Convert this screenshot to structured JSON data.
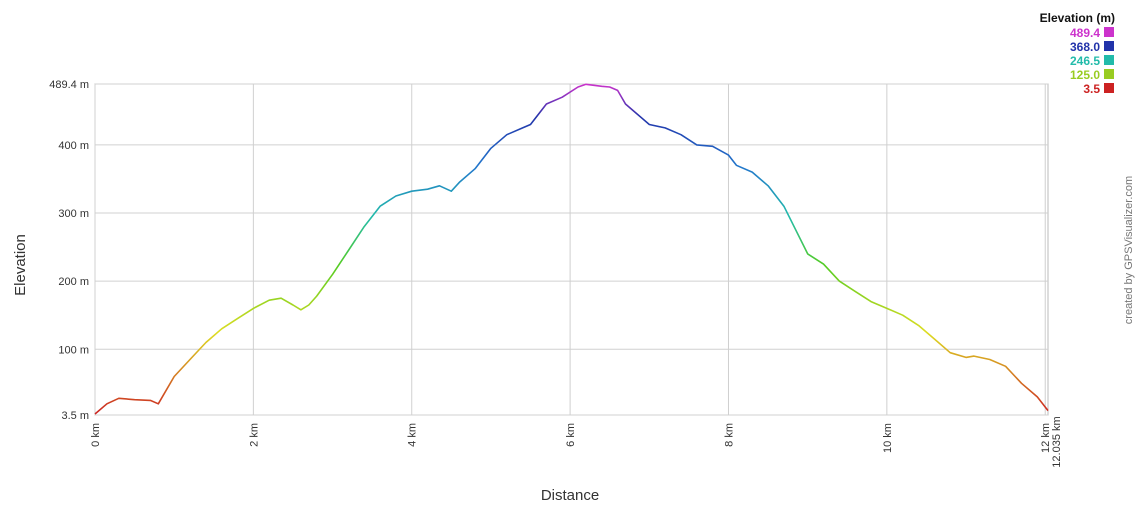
{
  "chart_data": {
    "type": "line",
    "xlabel": "Distance",
    "ylabel": "Elevation",
    "xlim": [
      0,
      12.035
    ],
    "ylim": [
      3.5,
      489.4
    ],
    "x_ticks": [
      {
        "value": 0,
        "label": "0 km"
      },
      {
        "value": 2,
        "label": "2 km"
      },
      {
        "value": 4,
        "label": "4 km"
      },
      {
        "value": 6,
        "label": "6 km"
      },
      {
        "value": 8,
        "label": "8 km"
      },
      {
        "value": 10,
        "label": "10 km"
      },
      {
        "value": 12,
        "label": "12 km"
      }
    ],
    "x_end_label": "12.035 km",
    "y_ticks": [
      {
        "value": 3.5,
        "label": "3.5 m"
      },
      {
        "value": 100,
        "label": "100 m"
      },
      {
        "value": 200,
        "label": "200 m"
      },
      {
        "value": 300,
        "label": "300 m"
      },
      {
        "value": 400,
        "label": "400 m"
      },
      {
        "value": 489.4,
        "label": "489.4 m"
      }
    ],
    "grid": true,
    "series": [
      {
        "x": [
          0,
          0.15,
          0.3,
          0.5,
          0.7,
          0.8,
          1.0,
          1.2,
          1.4,
          1.6,
          1.8,
          2.0,
          2.2,
          2.35,
          2.5,
          2.6,
          2.7,
          2.8,
          3.0,
          3.2,
          3.4,
          3.6,
          3.8,
          4.0,
          4.2,
          4.35,
          4.5,
          4.6,
          4.8,
          5.0,
          5.2,
          5.4,
          5.5,
          5.7,
          5.9,
          6.1,
          6.2,
          6.4,
          6.5,
          6.6,
          6.7,
          6.9,
          7.0,
          7.2,
          7.4,
          7.6,
          7.8,
          8.0,
          8.1,
          8.3,
          8.5,
          8.7,
          9.0,
          9.2,
          9.4,
          9.6,
          9.8,
          10.0,
          10.2,
          10.4,
          10.6,
          10.8,
          11.0,
          11.1,
          11.3,
          11.5,
          11.7,
          11.9,
          12.035
        ],
        "y": [
          5,
          20,
          28,
          26,
          25,
          20,
          60,
          85,
          110,
          130,
          145,
          160,
          172,
          175,
          165,
          158,
          165,
          178,
          210,
          245,
          280,
          310,
          325,
          332,
          335,
          340,
          332,
          345,
          365,
          395,
          415,
          425,
          430,
          460,
          470,
          485,
          489,
          486,
          485,
          480,
          460,
          440,
          430,
          425,
          415,
          400,
          398,
          385,
          370,
          360,
          340,
          310,
          240,
          225,
          200,
          185,
          170,
          160,
          150,
          135,
          115,
          95,
          88,
          90,
          85,
          75,
          50,
          30,
          10
        ]
      }
    ]
  },
  "legend": {
    "title": "Elevation (m)",
    "items": [
      {
        "label": "489.4",
        "color": "#cc33cc"
      },
      {
        "label": "368.0",
        "color": "#2233aa"
      },
      {
        "label": "246.5",
        "color": "#22bbaa"
      },
      {
        "label": "125.0",
        "color": "#99cc22"
      },
      {
        "label": "3.5",
        "color": "#cc2222"
      }
    ]
  },
  "credit": "created by GPSVisualizer.com"
}
